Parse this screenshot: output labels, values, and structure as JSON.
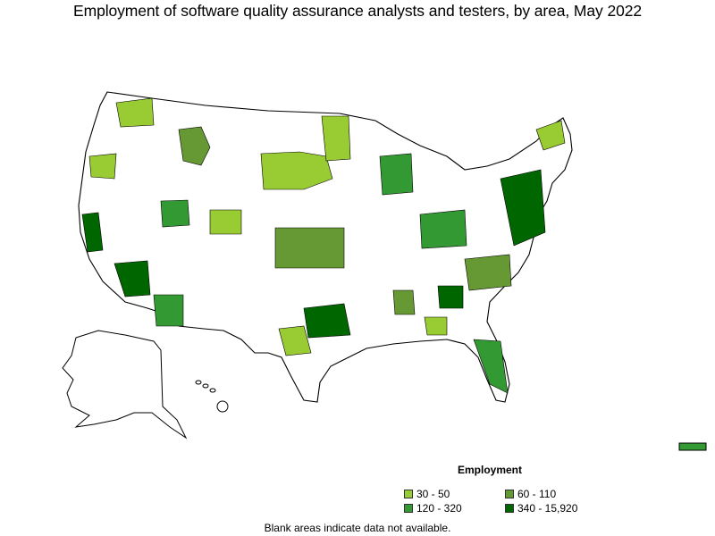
{
  "title": "Employment of software quality assurance analysts and testers, by area, May 2022",
  "legend": {
    "title": "Employment",
    "items": [
      {
        "label": "30 - 50",
        "color": "#99cc33"
      },
      {
        "label": "60 - 110",
        "color": "#669933"
      },
      {
        "label": "120 - 320",
        "color": "#339933"
      },
      {
        "label": "340 - 15,920",
        "color": "#006600"
      }
    ]
  },
  "footnote": "Blank areas indicate data not available.",
  "colors": {
    "outline": "#000000",
    "no_data": "#ffffff"
  }
}
